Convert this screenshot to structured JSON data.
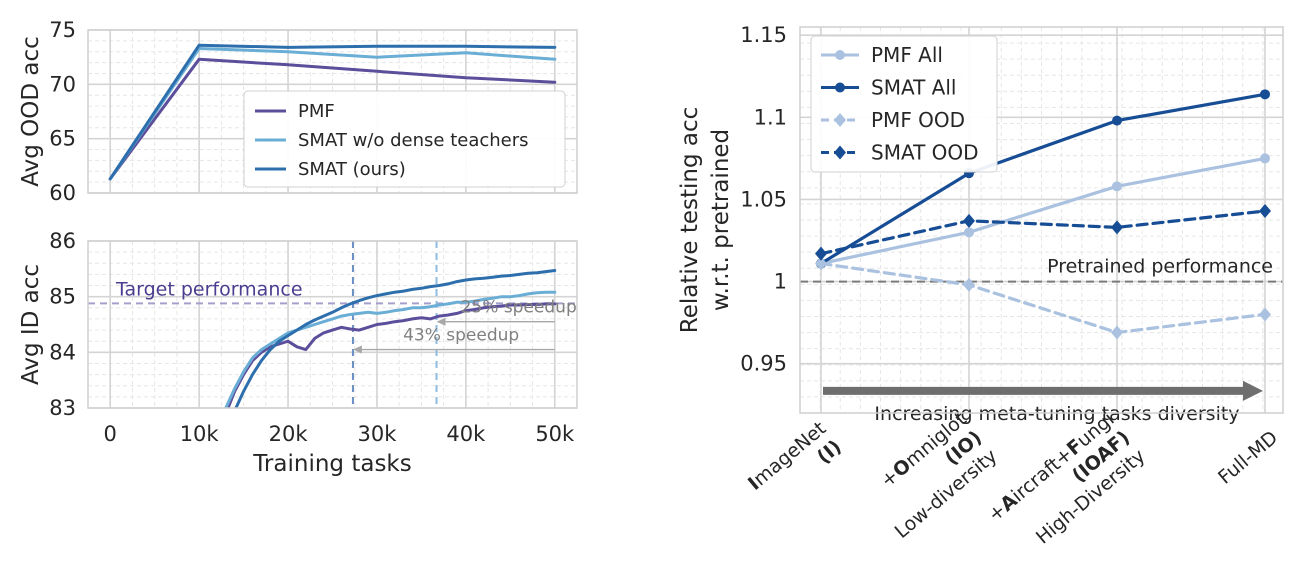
{
  "chart_data": [
    {
      "type": "line",
      "xlabel": "",
      "ylabel": "Avg OOD acc",
      "x": [
        0,
        10000,
        20000,
        30000,
        40000,
        50000
      ],
      "xlim": [
        -2500,
        52500
      ],
      "ylim": [
        60,
        75
      ],
      "yticks": [
        60,
        65,
        70,
        75
      ],
      "grid": true,
      "legend": "center-right",
      "series": [
        {
          "name": "PMF",
          "color": "#5d4e9b",
          "values": [
            61.3,
            72.3,
            71.8,
            71.2,
            70.6,
            70.2
          ]
        },
        {
          "name": "SMAT w/o dense teachers",
          "color": "#6aaed6",
          "values": [
            61.3,
            73.3,
            73.0,
            72.5,
            72.9,
            72.3
          ]
        },
        {
          "name": "SMAT (ours)",
          "color": "#2d6fad",
          "values": [
            61.3,
            73.6,
            73.4,
            73.5,
            73.5,
            73.4
          ]
        }
      ]
    },
    {
      "type": "line",
      "xlabel": "Training tasks",
      "ylabel": "Avg ID acc",
      "xticks": [
        0,
        10000,
        20000,
        30000,
        40000,
        50000
      ],
      "xticklabels": [
        "0",
        "10k",
        "20k",
        "30k",
        "40k",
        "50k"
      ],
      "xlim": [
        -2500,
        52500
      ],
      "ylim": [
        83,
        86
      ],
      "yticks": [
        83,
        84,
        85,
        86
      ],
      "grid": true,
      "series": [
        {
          "name": "PMF",
          "color": "#5d4e9b",
          "x": [
            13000,
            14000,
            15000,
            16000,
            17000,
            18000,
            19000,
            20000,
            21000,
            22000,
            23000,
            24000,
            25000,
            26000,
            27000,
            28000,
            29000,
            30000,
            31000,
            32000,
            33000,
            34000,
            35000,
            36000,
            37000,
            38000,
            39000,
            40000,
            41000,
            42000,
            43000,
            44000,
            45000,
            46000,
            47000,
            48000,
            49000,
            50000
          ],
          "values": [
            82.9,
            83.3,
            83.6,
            83.85,
            84.0,
            84.1,
            84.15,
            84.2,
            84.1,
            84.05,
            84.25,
            84.35,
            84.4,
            84.45,
            84.42,
            84.4,
            84.45,
            84.5,
            84.52,
            84.55,
            84.57,
            84.6,
            84.62,
            84.6,
            84.65,
            84.67,
            84.7,
            84.75,
            84.77,
            84.8,
            84.82,
            84.83,
            84.85,
            84.85,
            84.86,
            84.86,
            84.87,
            84.87
          ]
        },
        {
          "name": "SMAT w/o dense teachers",
          "color": "#6aaed6",
          "x": [
            13000,
            14000,
            15000,
            16000,
            17000,
            18000,
            19000,
            20000,
            21000,
            22000,
            23000,
            24000,
            25000,
            26000,
            27000,
            28000,
            29000,
            30000,
            31000,
            32000,
            33000,
            34000,
            35000,
            36000,
            37000,
            38000,
            39000,
            40000,
            41000,
            42000,
            43000,
            44000,
            45000,
            46000,
            47000,
            48000,
            49000,
            50000
          ],
          "values": [
            83.0,
            83.35,
            83.65,
            83.9,
            84.05,
            84.15,
            84.25,
            84.35,
            84.4,
            84.45,
            84.5,
            84.55,
            84.6,
            84.65,
            84.68,
            84.7,
            84.72,
            84.7,
            84.72,
            84.75,
            84.77,
            84.8,
            84.8,
            84.82,
            84.85,
            84.87,
            84.9,
            84.9,
            84.92,
            84.95,
            84.97,
            85.0,
            85.0,
            85.02,
            85.05,
            85.07,
            85.08,
            85.08
          ]
        },
        {
          "name": "SMAT (ours)",
          "color": "#2d6fad",
          "x": [
            14000,
            15000,
            16000,
            17000,
            18000,
            19000,
            20000,
            21000,
            22000,
            23000,
            24000,
            25000,
            26000,
            27000,
            28000,
            29000,
            30000,
            31000,
            32000,
            33000,
            34000,
            35000,
            36000,
            37000,
            38000,
            39000,
            40000,
            41000,
            42000,
            43000,
            44000,
            45000,
            46000,
            47000,
            48000,
            49000,
            50000
          ],
          "values": [
            82.95,
            83.3,
            83.6,
            83.85,
            84.05,
            84.2,
            84.3,
            84.4,
            84.5,
            84.58,
            84.65,
            84.72,
            84.8,
            84.87,
            84.93,
            84.98,
            85.02,
            85.05,
            85.08,
            85.1,
            85.13,
            85.15,
            85.18,
            85.2,
            85.23,
            85.27,
            85.3,
            85.32,
            85.33,
            85.35,
            85.37,
            85.38,
            85.4,
            85.42,
            85.43,
            85.45,
            85.47
          ]
        }
      ],
      "reference_lines": [
        {
          "orientation": "horizontal",
          "y": 84.88,
          "label": "Target performance",
          "color": "#a59fcc"
        },
        {
          "orientation": "vertical",
          "x": 27300,
          "color": "#6a8fc4"
        },
        {
          "orientation": "vertical",
          "x": 36700,
          "color": "#8dbce0"
        }
      ],
      "annotations": [
        {
          "text": "25% speedup",
          "arrow_from_x": 50000,
          "arrow_to_x": 36700,
          "y": 84.55
        },
        {
          "text": "43% speedup",
          "arrow_from_x": 50000,
          "arrow_to_x": 27300,
          "y": 84.05
        }
      ]
    },
    {
      "type": "line",
      "xlabel": "",
      "ylabel": "Relative testing acc\nw.r.t. pretrained",
      "categories": [
        [
          "ImageNet",
          "(I)"
        ],
        [
          "+Omniglot",
          "(IO)",
          "Low-diversity"
        ],
        [
          "+Aircraft+Fungi",
          "(IOAF)",
          "High-Diversity"
        ],
        [
          "Full-MD"
        ]
      ],
      "ylim": [
        0.92,
        1.155
      ],
      "yticks": [
        0.95,
        1,
        1.05,
        1.1,
        1.15
      ],
      "yticklabels": [
        "0.95",
        "1",
        "1.05",
        "1.1",
        "1.15"
      ],
      "grid": true,
      "legend": "top-left",
      "series": [
        {
          "name": "PMF All",
          "color": "#aac2e0",
          "dash": "solid",
          "marker": "circle",
          "values": [
            1.011,
            1.03,
            1.058,
            1.075
          ]
        },
        {
          "name": "SMAT All",
          "color": "#174d94",
          "dash": "solid",
          "marker": "circle",
          "values": [
            1.011,
            1.066,
            1.098,
            1.114
          ]
        },
        {
          "name": "PMF OOD",
          "color": "#aac2e0",
          "dash": "dashed",
          "marker": "diamond",
          "values": [
            1.011,
            0.998,
            0.969,
            0.98
          ]
        },
        {
          "name": "SMAT OOD",
          "color": "#174d94",
          "dash": "dashed",
          "marker": "diamond",
          "values": [
            1.017,
            1.037,
            1.033,
            1.043
          ]
        }
      ],
      "reference_lines": [
        {
          "orientation": "horizontal",
          "y": 1.0,
          "label": "Pretrained performance",
          "color": "#7a7a7a"
        }
      ],
      "annotations": [
        {
          "text": "Increasing meta-tuning tasks diversity",
          "arrow": "right"
        }
      ]
    }
  ]
}
